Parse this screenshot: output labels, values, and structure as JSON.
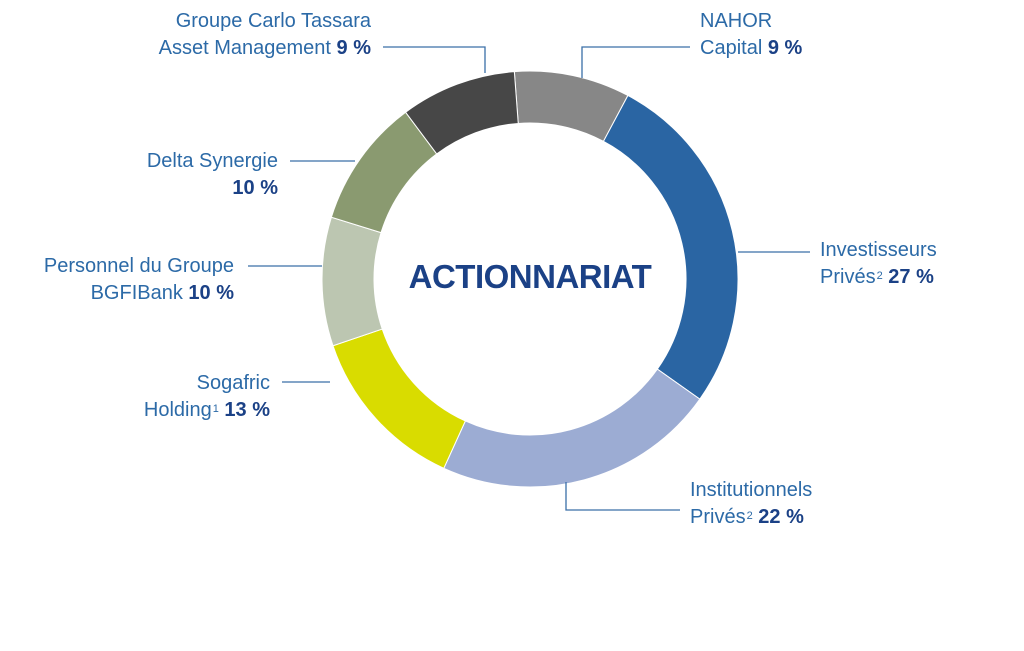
{
  "chart_data": {
    "type": "pie",
    "title": "ACTIONNARIAT",
    "slices": [
      {
        "name_lines": [
          "NAHOR",
          "Capital"
        ],
        "sup": "",
        "pct_label": "9 %",
        "value": 9,
        "color": "#878787"
      },
      {
        "name_lines": [
          "Investisseurs",
          "Privés"
        ],
        "sup": "2",
        "pct_label": "27 %",
        "value": 27,
        "color": "#2a65a3"
      },
      {
        "name_lines": [
          "Institutionnels",
          "Privés"
        ],
        "sup": "2",
        "pct_label": "22 %",
        "value": 22,
        "color": "#9cacd3"
      },
      {
        "name_lines": [
          "Sogafric",
          "Holding"
        ],
        "sup": "1",
        "pct_label": "13 %",
        "value": 13,
        "color": "#d9dc00"
      },
      {
        "name_lines": [
          "Personnel du Groupe",
          "BGFIBank"
        ],
        "sup": "",
        "pct_label": "10 %",
        "value": 10,
        "color": "#bcc6b1"
      },
      {
        "name_lines": [
          "Delta Synergie",
          ""
        ],
        "sup": "",
        "pct_label": "10 %",
        "value": 10,
        "color": "#8a9a70"
      },
      {
        "name_lines": [
          "Groupe Carlo Tassara",
          "Asset Management"
        ],
        "sup": "",
        "pct_label": "9 %",
        "value": 9,
        "color": "#474747"
      }
    ]
  }
}
